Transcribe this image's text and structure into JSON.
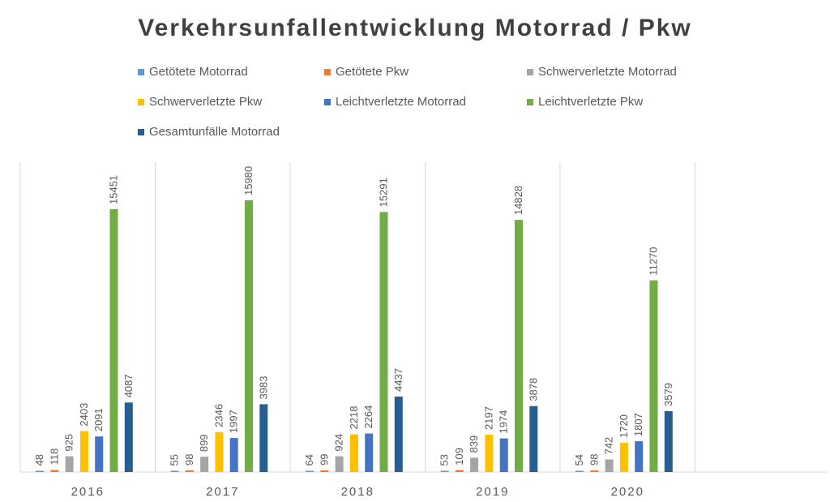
{
  "chart_data": {
    "type": "bar",
    "title": "Verkehrsunfallentwicklung Motorrad / Pkw",
    "categories": [
      "2016",
      "2017",
      "2018",
      "2019",
      "2020"
    ],
    "series": [
      {
        "name": "Getötete Motorrad",
        "color": "#5B9BD5",
        "values": [
          48,
          55,
          64,
          53,
          54
        ]
      },
      {
        "name": "Getötete Pkw",
        "color": "#ED7D31",
        "values": [
          118,
          98,
          99,
          109,
          98
        ]
      },
      {
        "name": "Schwerverletzte Motorrad",
        "color": "#A5A5A5",
        "values": [
          925,
          899,
          924,
          839,
          742
        ]
      },
      {
        "name": "Schwerverletzte Pkw",
        "color": "#FFC000",
        "values": [
          2403,
          2346,
          2218,
          2197,
          1720
        ]
      },
      {
        "name": "Leichtverletzte Motorrad",
        "color": "#4472C4",
        "values": [
          2091,
          1997,
          2264,
          1974,
          1807
        ]
      },
      {
        "name": "Leichtverletzte Pkw",
        "color": "#70AD47",
        "values": [
          15451,
          15980,
          15291,
          14828,
          11270
        ]
      },
      {
        "name": "Gesamtunfälle Motorrad",
        "color": "#255E91",
        "values": [
          4087,
          3983,
          4437,
          3878,
          3579
        ]
      }
    ],
    "ylim": [
      0,
      18000
    ],
    "grid": false,
    "legend": "top",
    "data_labels": true
  }
}
